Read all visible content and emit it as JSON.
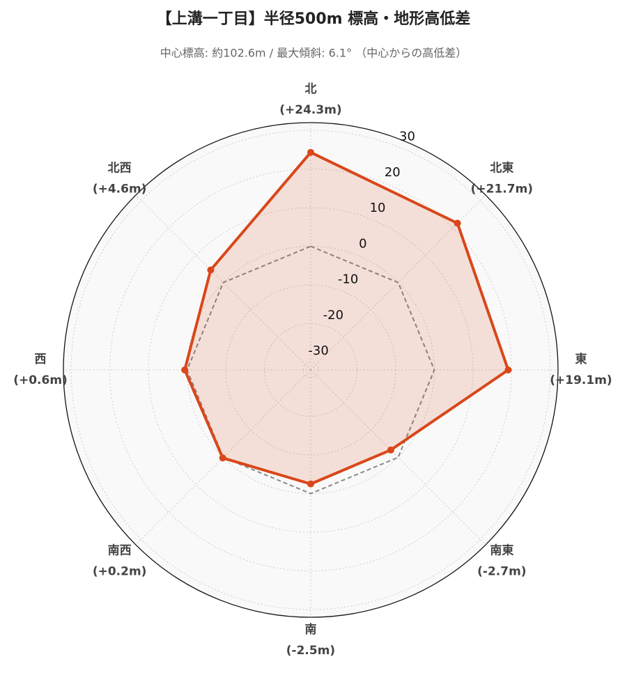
{
  "chart_data": {
    "type": "radar",
    "title": "【上溝一丁目】半径500m 標高・地形高低差",
    "subtitle": "中心標高: 約102.6m / 最大傾斜: 6.1° （中心からの高低差）",
    "categories": [
      "北",
      "北東",
      "東",
      "南東",
      "南",
      "南西",
      "西",
      "北西"
    ],
    "values": [
      24.3,
      21.7,
      19.1,
      -2.7,
      -2.5,
      0.2,
      0.6,
      4.6
    ],
    "value_labels": [
      "(+24.3m)",
      "(+21.7m)",
      "(+19.1m)",
      "(-2.7m)",
      "(-2.5m)",
      "(+0.2m)",
      "(+0.6m)",
      "(+4.6m)"
    ],
    "color": "#d9471a",
    "reference_value": 0,
    "ylim": [
      -32,
      32
    ],
    "yticks": [
      -30,
      -20,
      -10,
      0,
      10,
      20,
      30
    ],
    "grid": true
  }
}
